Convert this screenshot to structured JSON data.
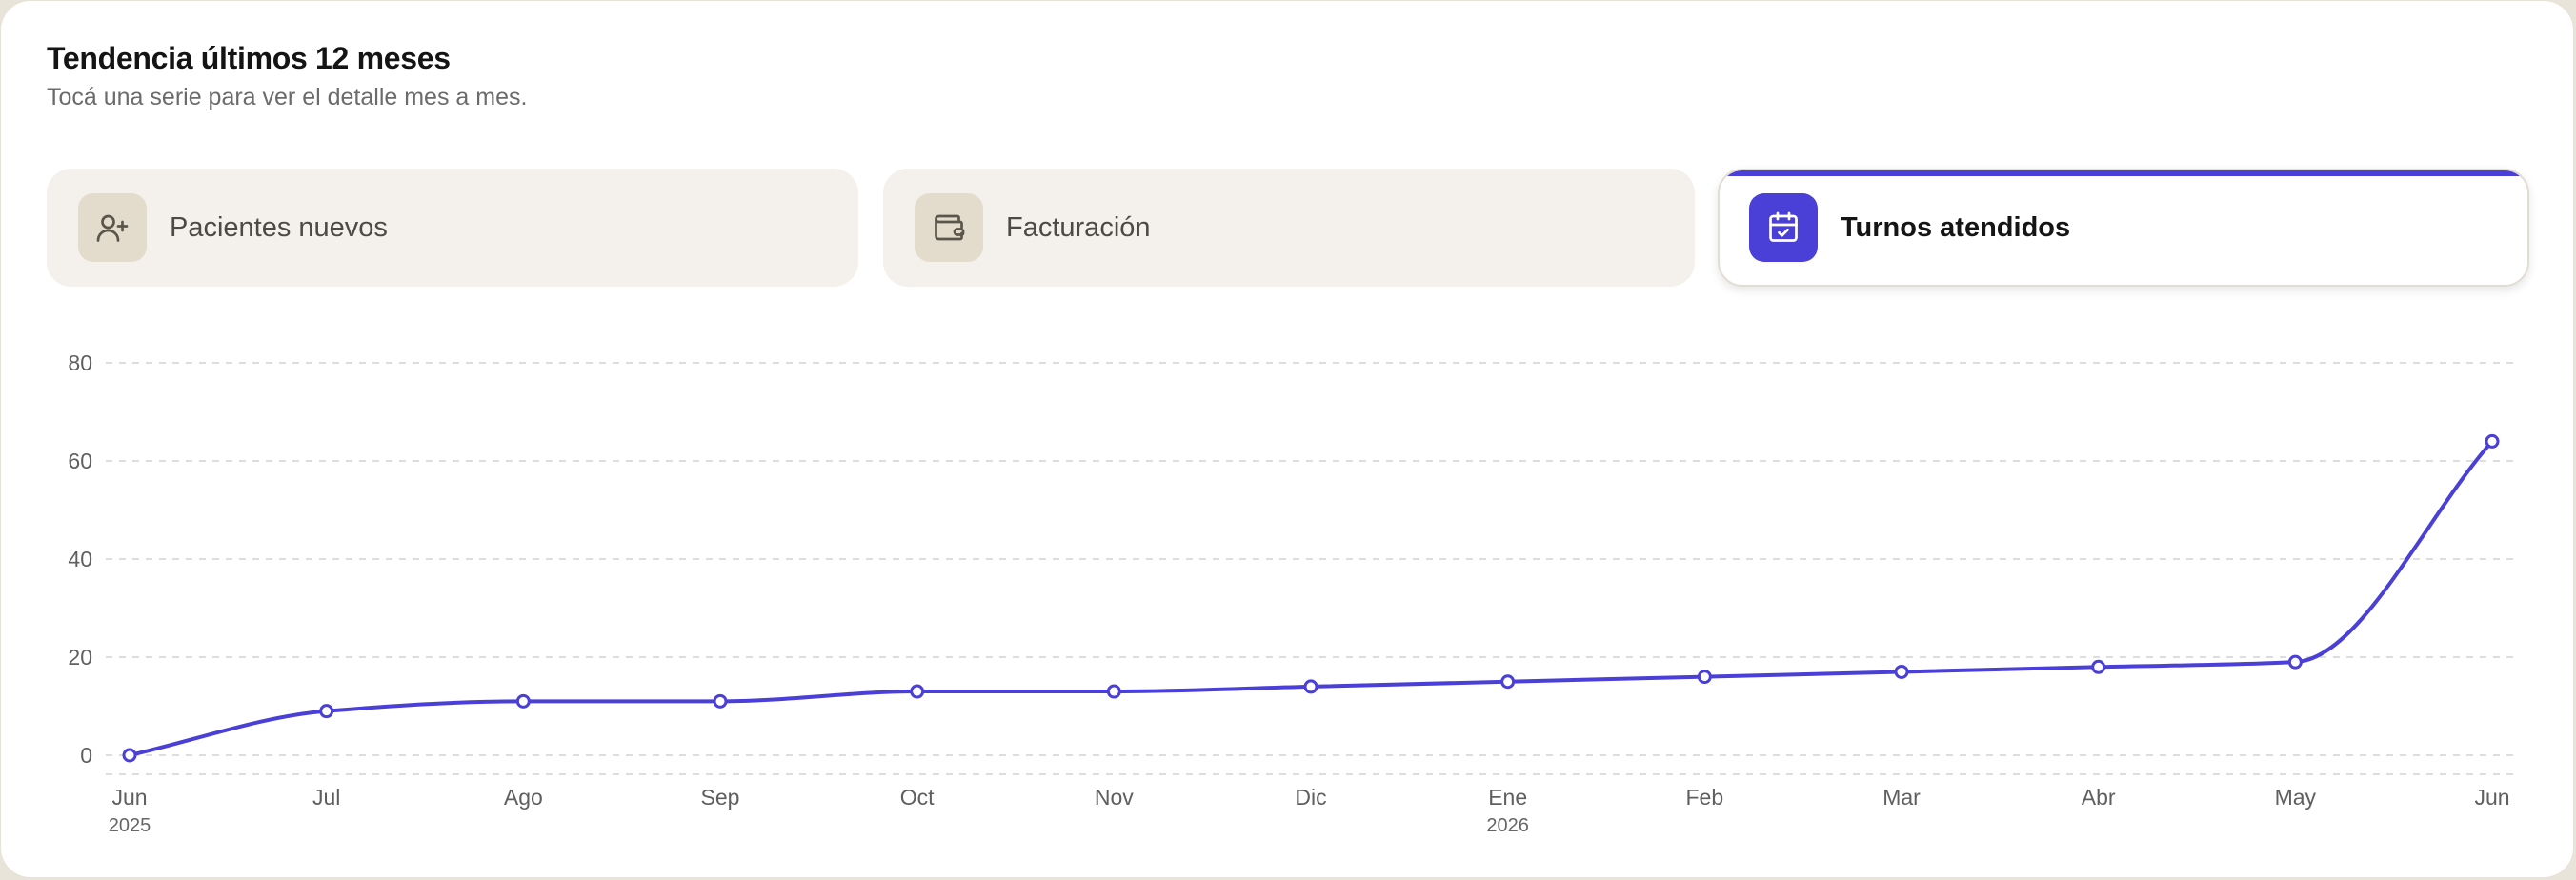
{
  "header": {
    "title": "Tendencia últimos 12 meses",
    "subtitle": "Tocá una serie para ver el detalle mes a mes."
  },
  "tabs": [
    {
      "label": "Pacientes nuevos",
      "icon": "user-plus-icon",
      "active": false
    },
    {
      "label": "Facturación",
      "icon": "wallet-icon",
      "active": false
    },
    {
      "label": "Turnos atendidos",
      "icon": "calendar-check-icon",
      "active": true
    }
  ],
  "colors": {
    "accent": "#4a3fd6",
    "tab_bg": "#f4f0ec",
    "icon_bg": "#e3dccc"
  },
  "chart_data": {
    "type": "line",
    "categories": [
      "Jun",
      "Jul",
      "Ago",
      "Sep",
      "Oct",
      "Nov",
      "Dic",
      "Ene",
      "Feb",
      "Mar",
      "Abr",
      "May",
      "Jun"
    ],
    "year_labels": [
      {
        "index": 0,
        "label": "2025"
      },
      {
        "index": 7,
        "label": "2026"
      }
    ],
    "series": [
      {
        "values": [
          0,
          9,
          11,
          11,
          13,
          13,
          14,
          15,
          16,
          17,
          18,
          19,
          64
        ]
      }
    ],
    "ylim": [
      0,
      80
    ],
    "yticks": [
      0,
      20,
      40,
      60,
      80
    ],
    "grid": true,
    "color": "#4a3fd6"
  }
}
